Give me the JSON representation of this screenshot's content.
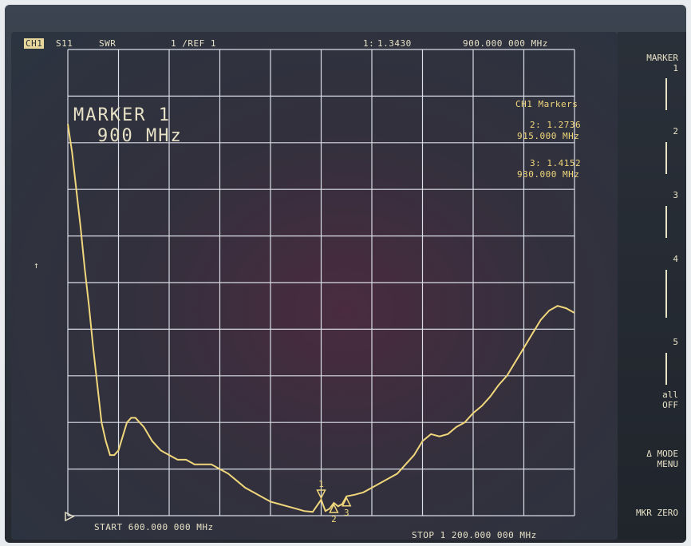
{
  "header": {
    "channel": "CH1",
    "param": "S11",
    "format": "SWR",
    "scale": "1 /REF 1",
    "marker_readout_label": "1:",
    "marker_readout_value": "1.3430",
    "marker_freq": "900.000 000 MHz"
  },
  "active_marker": {
    "line1": "MARKER 1",
    "line2": "900 MHz"
  },
  "markers_panel": {
    "title": "CH1 Markers",
    "m2_value": "2: 1.2736",
    "m2_freq": "915.000 MHz",
    "m3_value": "3: 1.4152",
    "m3_freq": "930.000 MHz"
  },
  "sweep": {
    "start": "START 600.000 000 MHz",
    "stop": "STOP 1 200.000 000 MHz"
  },
  "softkeys": {
    "k1a": "MARKER",
    "k1b": "1",
    "k2": "2",
    "k3": "3",
    "k4": "4",
    "k5": "5",
    "k6a": "all",
    "k6b": "OFF",
    "k7a": "Δ MODE",
    "k7b": "MENU",
    "k8": "MKR ZERO"
  },
  "marker_labels": {
    "m1": "1",
    "m2": "2",
    "m3": "3"
  },
  "colors": {
    "trace": "#f0d77b",
    "grid": "#d9dde6",
    "text": "#e7e1c6"
  },
  "chart_data": {
    "type": "line",
    "x_unit": "MHz",
    "y_unit": "SWR",
    "xlim": [
      600,
      1200
    ],
    "ylim": [
      1,
      11
    ],
    "grid": true,
    "series": [
      {
        "x": [
          600,
          605,
          610,
          615,
          620,
          625,
          630,
          635,
          640,
          645,
          650,
          655,
          660,
          665,
          670,
          675,
          680,
          690,
          700,
          710,
          720,
          730,
          740,
          750,
          760,
          770,
          780,
          790,
          800,
          810,
          820,
          830,
          840,
          850,
          860,
          870,
          880,
          890,
          900,
          905,
          910,
          915,
          920,
          925,
          930,
          940,
          950,
          960,
          970,
          980,
          990,
          1000,
          1010,
          1020,
          1030,
          1040,
          1050,
          1060,
          1070,
          1080,
          1090,
          1100,
          1110,
          1120,
          1130,
          1140,
          1150,
          1160,
          1170,
          1180,
          1190,
          1200
        ],
        "y": [
          9.4,
          8.8,
          8.0,
          7.2,
          6.3,
          5.5,
          4.6,
          3.8,
          3.0,
          2.6,
          2.3,
          2.3,
          2.4,
          2.7,
          3.0,
          3.1,
          3.1,
          2.9,
          2.6,
          2.4,
          2.3,
          2.2,
          2.2,
          2.1,
          2.1,
          2.1,
          2.0,
          1.9,
          1.75,
          1.6,
          1.5,
          1.4,
          1.3,
          1.25,
          1.2,
          1.15,
          1.1,
          1.08,
          1.343,
          1.1,
          1.15,
          1.2736,
          1.2,
          1.25,
          1.4152,
          1.45,
          1.5,
          1.6,
          1.7,
          1.8,
          1.9,
          2.1,
          2.3,
          2.6,
          2.75,
          2.7,
          2.75,
          2.9,
          3.0,
          3.2,
          3.35,
          3.55,
          3.8,
          4.0,
          4.3,
          4.6,
          4.9,
          5.2,
          5.4,
          5.5,
          5.45,
          5.35
        ]
      }
    ],
    "markers": [
      {
        "label": "1",
        "x": 900,
        "y": 1.343
      },
      {
        "label": "2",
        "x": 915,
        "y": 1.2736
      },
      {
        "label": "3",
        "x": 930,
        "y": 1.4152
      }
    ]
  }
}
